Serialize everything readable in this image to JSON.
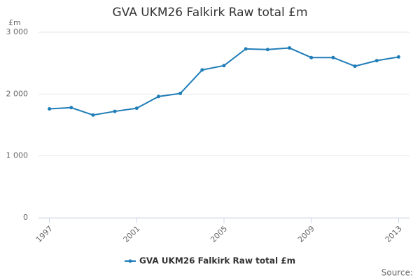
{
  "chart_data": {
    "type": "line",
    "title": "GVA UKM26 Falkirk Raw total £m",
    "y_label": "£m",
    "source": "Source:",
    "x": [
      1997,
      1998,
      1999,
      2000,
      2001,
      2002,
      2003,
      2004,
      2005,
      2006,
      2007,
      2008,
      2009,
      2010,
      2011,
      2012,
      2013
    ],
    "series": [
      {
        "name": "GVA UKM26 Falkirk Raw total £m",
        "color": "#1f7db8",
        "values": [
          1760,
          1780,
          1660,
          1720,
          1770,
          1960,
          2010,
          2390,
          2460,
          2730,
          2720,
          2745,
          2590,
          2590,
          2450,
          2540,
          2600
        ]
      }
    ],
    "xlim": [
      1996.5,
      2013.5
    ],
    "xticks": [
      1997,
      2001,
      2005,
      2009,
      2013
    ],
    "ylim": [
      0,
      3000
    ],
    "yticks": [
      0,
      {
        "value": 1000,
        "label": "1 000"
      },
      {
        "value": 2000,
        "label": "2 000"
      },
      {
        "value": 3000,
        "label": "3 000"
      }
    ],
    "grid": true,
    "legend": "bottom"
  }
}
